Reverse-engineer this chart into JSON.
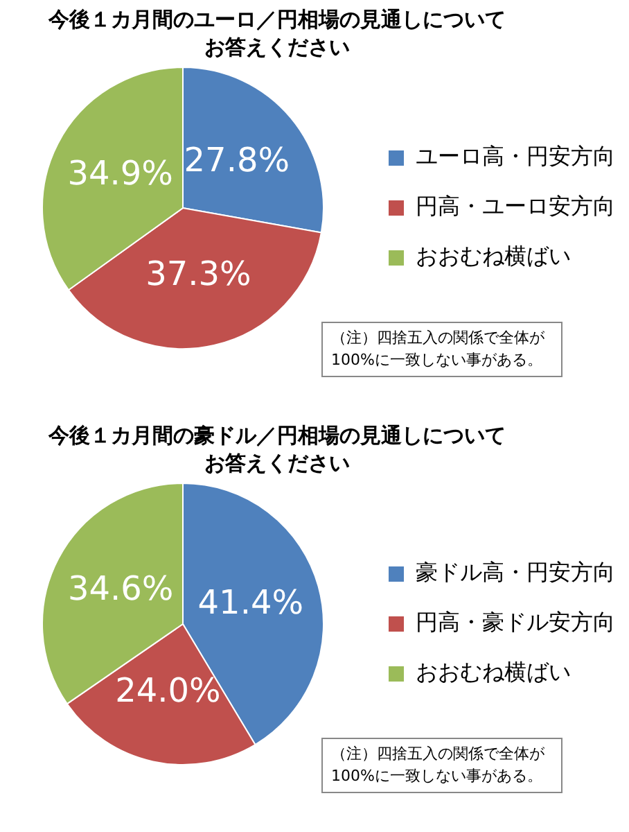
{
  "chart_data": [
    {
      "type": "pie",
      "title": "今後１カ月間のユーロ／円相場の見通しについてお答えください",
      "categories": [
        "ユーロ高・円安方向",
        "円高・ユーロ安方向",
        "おおむね横ばい"
      ],
      "values": [
        27.8,
        37.3,
        34.9
      ],
      "colors": [
        "#4f81bd",
        "#c0504d",
        "#9bbb59"
      ],
      "value_labels": [
        "27.8%",
        "37.3%",
        "34.9%"
      ],
      "legend": "right",
      "annotations": [
        "（注）四捨五入の関係で全体が100%に一致しない事がある。"
      ]
    },
    {
      "type": "pie",
      "title": "今後１カ月間の豪ドル／円相場の見通しについてお答えください",
      "categories": [
        "豪ドル高・円安方向",
        "円高・豪ドル安方向",
        "おおむね横ばい"
      ],
      "values": [
        41.4,
        24.0,
        34.6
      ],
      "colors": [
        "#4f81bd",
        "#c0504d",
        "#9bbb59"
      ],
      "value_labels": [
        "41.4%",
        "24.0%",
        "34.6%"
      ],
      "legend": "right",
      "annotations": [
        "（注）四捨五入の関係で全体が100%に一致しない事がある。"
      ]
    }
  ]
}
